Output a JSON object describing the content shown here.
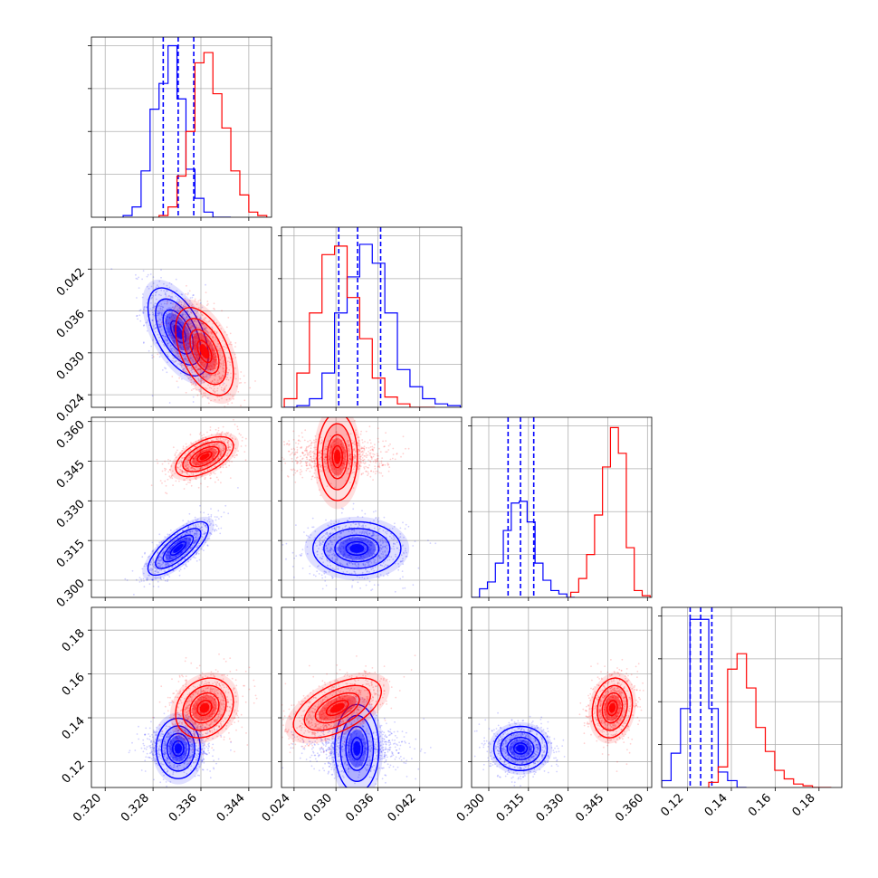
{
  "colors": {
    "blue": "#0000ff",
    "red": "#ff0000",
    "grid": "#b0b0b0"
  },
  "chart_data": {
    "type": "corner",
    "grid": true,
    "parameters": [
      {
        "ticks": [
          0.32,
          0.328,
          0.336,
          0.344
        ],
        "tick_labels": [
          "0.320",
          "0.328",
          "0.336",
          "0.344"
        ],
        "range": [
          0.3177,
          0.3478
        ]
      },
      {
        "ticks": [
          0.024,
          0.03,
          0.036,
          0.042
        ],
        "tick_labels": [
          "0.024",
          "0.030",
          "0.036",
          "0.042"
        ],
        "range": [
          0.0222,
          0.048
        ]
      },
      {
        "ticks": [
          0.3,
          0.315,
          0.33,
          0.345,
          0.36
        ],
        "tick_labels": [
          "0.300",
          "0.315",
          "0.330",
          "0.345",
          "0.360"
        ],
        "range": [
          0.2935,
          0.3616
        ]
      },
      {
        "ticks": [
          0.12,
          0.14,
          0.16,
          0.18
        ],
        "tick_labels": [
          "0.12",
          "0.14",
          "0.16",
          "0.18"
        ],
        "range": [
          0.1082,
          0.1904
        ]
      }
    ],
    "series": [
      {
        "color": "#0000ff",
        "mean": [
          0.3322,
          0.033,
          0.312,
          0.126
        ],
        "sigma": [
          0.0024,
          0.003,
          0.0048,
          0.0048
        ],
        "correlation": [
          [
            1.0,
            -0.55,
            0.75,
            0.0
          ],
          [
            -0.55,
            1.0,
            0.0,
            0.0
          ],
          [
            0.75,
            0.0,
            1.0,
            0.0
          ],
          [
            0.0,
            0.0,
            0.0,
            1.0
          ]
        ],
        "quantile_lines": [
          [
            0.3297,
            0.3322,
            0.3348
          ],
          [
            0.0304,
            0.0331,
            0.0364
          ],
          [
            0.3073,
            0.312,
            0.317
          ],
          [
            0.1212,
            0.126,
            0.1311
          ]
        ],
        "histograms": [
          {
            "bins": [
              0.323,
              0.3245,
              0.326,
              0.3275,
              0.329,
              0.3305,
              0.332,
              0.3335,
              0.335,
              0.3365,
              0.338,
              0.3395,
              0.341
            ],
            "counts": [
              0.01,
              0.06,
              0.27,
              0.63,
              0.78,
              1.0,
              0.69,
              0.28,
              0.11,
              0.03,
              0.0,
              0.0
            ]
          },
          {
            "bins": [
              0.0226,
              0.0244,
              0.0262,
              0.028,
              0.0298,
              0.0316,
              0.0334,
              0.0352,
              0.037,
              0.0388,
              0.0406,
              0.0424,
              0.0442,
              0.046,
              0.0478
            ],
            "counts": [
              0.0,
              0.01,
              0.05,
              0.2,
              0.55,
              0.76,
              0.95,
              0.84,
              0.55,
              0.22,
              0.12,
              0.05,
              0.02,
              0.01
            ]
          },
          {
            "bins": [
              0.2935,
              0.2965,
              0.2995,
              0.3025,
              0.3055,
              0.3085,
              0.3115,
              0.3145,
              0.3175,
              0.3205,
              0.3235,
              0.3265,
              0.3295,
              0.3325
            ],
            "counts": [
              0.0,
              0.05,
              0.09,
              0.2,
              0.39,
              0.55,
              0.56,
              0.44,
              0.2,
              0.1,
              0.04,
              0.02,
              0.0
            ]
          },
          {
            "bins": [
              0.1082,
              0.1125,
              0.1168,
              0.1211,
              0.1254,
              0.1297,
              0.134,
              0.1383,
              0.1426,
              0.1469
            ],
            "counts": [
              0.04,
              0.2,
              0.46,
              0.98,
              0.98,
              0.46,
              0.09,
              0.04,
              0.0
            ]
          }
        ]
      },
      {
        "color": "#ff0000",
        "mean": [
          0.3366,
          0.0302,
          0.3467,
          0.1445
        ],
        "sigma": [
          0.0023,
          0.003,
          0.0036,
          0.0065
        ],
        "correlation": [
          [
            1.0,
            -0.5,
            0.55,
            0.2
          ],
          [
            -0.5,
            1.0,
            0.0,
            0.55
          ],
          [
            0.55,
            0.0,
            1.0,
            0.15
          ],
          [
            0.2,
            0.55,
            0.15,
            1.0
          ]
        ],
        "histograms": [
          {
            "bins": [
              0.329,
              0.3305,
              0.332,
              0.3335,
              0.335,
              0.3365,
              0.338,
              0.3395,
              0.341,
              0.3425,
              0.344,
              0.3455,
              0.347
            ],
            "counts": [
              0.01,
              0.06,
              0.24,
              0.5,
              0.9,
              0.96,
              0.72,
              0.52,
              0.27,
              0.13,
              0.03,
              0.01
            ]
          },
          {
            "bins": [
              0.0226,
              0.0244,
              0.0262,
              0.028,
              0.0298,
              0.0316,
              0.0334,
              0.0352,
              0.037,
              0.0388,
              0.0406,
              0.0424,
              0.0442
            ],
            "counts": [
              0.05,
              0.2,
              0.55,
              0.89,
              0.94,
              0.64,
              0.4,
              0.17,
              0.06,
              0.02,
              0.0,
              0.0
            ]
          },
          {
            "bins": [
              0.331,
              0.334,
              0.337,
              0.34,
              0.343,
              0.346,
              0.349,
              0.352,
              0.355,
              0.358,
              0.361
            ],
            "counts": [
              0.03,
              0.11,
              0.25,
              0.48,
              0.76,
              0.99,
              0.84,
              0.29,
              0.04,
              0.01
            ]
          },
          {
            "bins": [
              0.1297,
              0.134,
              0.1383,
              0.1426,
              0.1469,
              0.1512,
              0.1555,
              0.1598,
              0.1641,
              0.1684,
              0.1727,
              0.177,
              0.1813,
              0.1856
            ],
            "counts": [
              0.03,
              0.12,
              0.69,
              0.78,
              0.58,
              0.35,
              0.21,
              0.1,
              0.05,
              0.02,
              0.01,
              0.0,
              0.0
            ]
          }
        ]
      }
    ]
  }
}
